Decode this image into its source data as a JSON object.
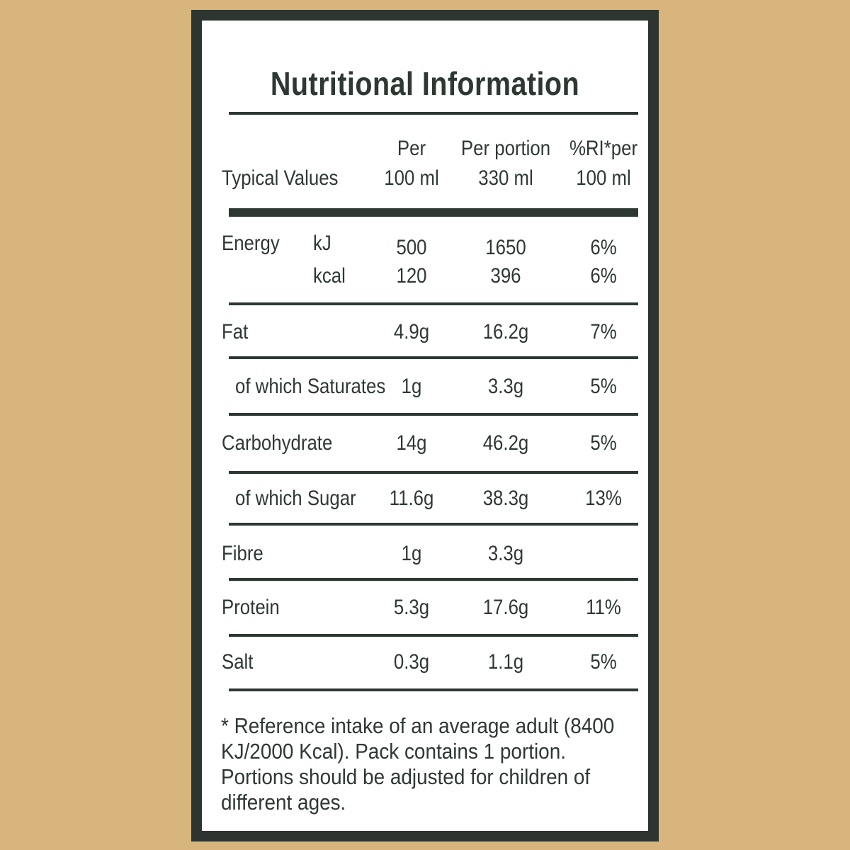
{
  "title": "Nutritional Information",
  "header": {
    "label": "Typical Values",
    "col_per100_line1": "Per",
    "col_per100_line2": "100 ml",
    "col_portion_line1": "Per portion",
    "col_portion_line2": "330 ml",
    "col_ri_line1": "%RI*per",
    "col_ri_line2": "100 ml"
  },
  "energy": {
    "label": "Energy",
    "kj": {
      "unit": "kJ",
      "per100": "500",
      "portion": "1650",
      "ri": "6%"
    },
    "kcal": {
      "unit": "kcal",
      "per100": "120",
      "portion": "396",
      "ri": "6%"
    }
  },
  "rows": [
    {
      "label": "Fat",
      "per100": "4.9g",
      "portion": "16.2g",
      "ri": "7%"
    },
    {
      "label": "of which Saturates",
      "per100": "1g",
      "portion": "3.3g",
      "ri": "5%"
    },
    {
      "label": "Carbohydrate",
      "per100": "14g",
      "portion": "46.2g",
      "ri": "5%"
    },
    {
      "label": "of which Sugar",
      "per100": "11.6g",
      "portion": "38.3g",
      "ri": "13%"
    },
    {
      "label": "Fibre",
      "per100": "1g",
      "portion": "3.3g",
      "ri": ""
    },
    {
      "label": "Protein",
      "per100": "5.3g",
      "portion": "17.6g",
      "ri": "11%"
    },
    {
      "label": "Salt",
      "per100": "0.3g",
      "portion": "1.1g",
      "ri": "5%"
    }
  ],
  "footnote_lines": [
    "* Reference intake of an average adult (8400",
    "KJ/2000 Kcal). Pack contains 1 portion.",
    "Portions should be adjusted for children of",
    "different ages."
  ],
  "colors": {
    "background": "#d7b57c",
    "border": "#2e3530",
    "text": "#2e3833",
    "card": "#ffffff"
  }
}
